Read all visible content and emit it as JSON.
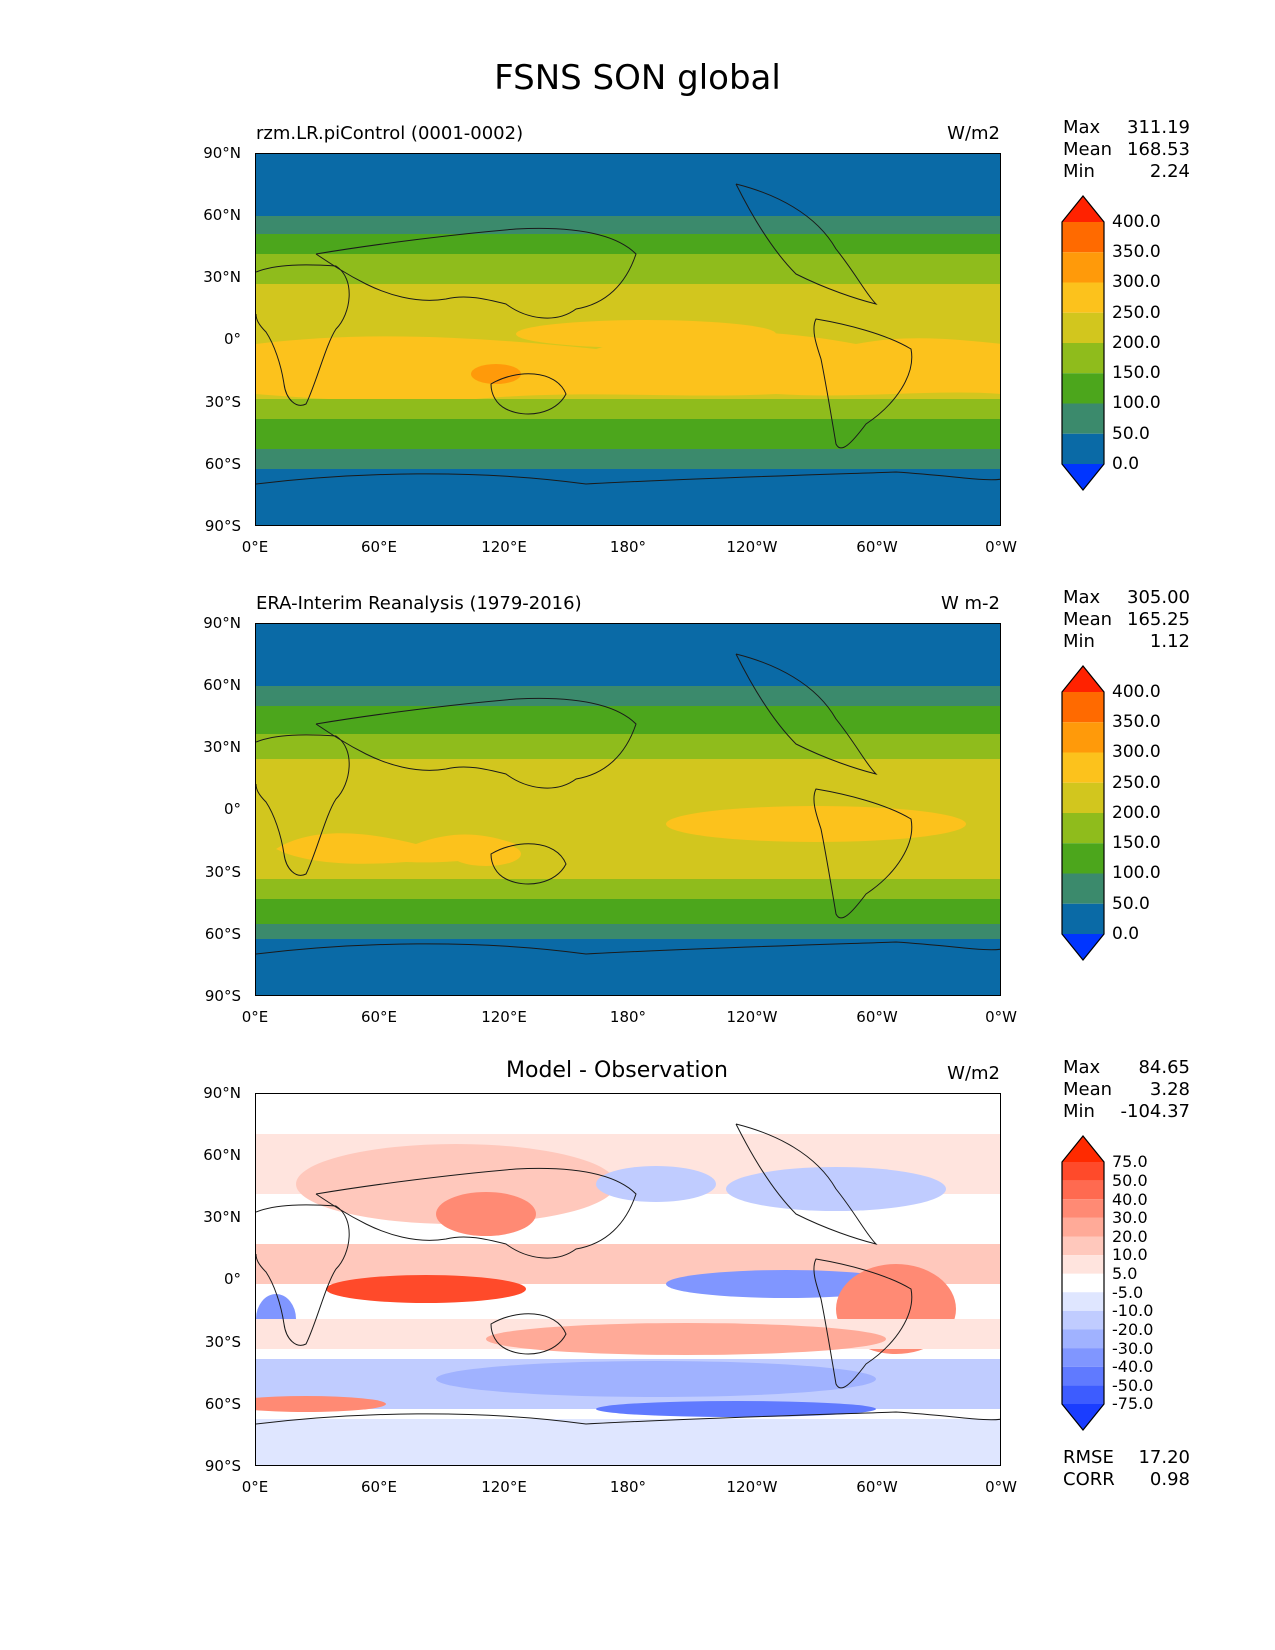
{
  "figure_title": "FSNS SON global",
  "panels": [
    {
      "label": "rzm.LR.piControl (0001-0002)",
      "units": "W/m2",
      "stats": {
        "max_key": "Max",
        "max": "311.19",
        "mean_key": "Mean",
        "mean": "168.53",
        "min_key": "Min",
        "min": "2.24"
      },
      "colorbar": {
        "levels": [
          "400.0",
          "350.0",
          "300.0",
          "250.0",
          "200.0",
          "150.0",
          "100.0",
          "50.0",
          "0.0"
        ],
        "colors": [
          "#ff2200",
          "#ff6a00",
          "#ff9a0a",
          "#fcc21c",
          "#d2c61e",
          "#8fbc1c",
          "#4ca61c",
          "#3b8a6c",
          "#0a6aa6",
          "#0035ff"
        ]
      }
    },
    {
      "label": "ERA-Interim Reanalysis (1979-2016)",
      "units": "W m-2",
      "stats": {
        "max_key": "Max",
        "max": "305.00",
        "mean_key": "Mean",
        "mean": "165.25",
        "min_key": "Min",
        "min": "1.12"
      },
      "colorbar": {
        "levels": [
          "400.0",
          "350.0",
          "300.0",
          "250.0",
          "200.0",
          "150.0",
          "100.0",
          "50.0",
          "0.0"
        ],
        "colors": [
          "#ff2200",
          "#ff6a00",
          "#ff9a0a",
          "#fcc21c",
          "#d2c61e",
          "#8fbc1c",
          "#4ca61c",
          "#3b8a6c",
          "#0a6aa6",
          "#0035ff"
        ]
      }
    },
    {
      "label": "Model - Observation",
      "units": "W/m2",
      "stats": {
        "max_key": "Max",
        "max": "84.65",
        "mean_key": "Mean",
        "mean": "3.28",
        "min_key": "Min",
        "min": "-104.37"
      },
      "extra_stats": {
        "rmse_key": "RMSE",
        "rmse": "17.20",
        "corr_key": "CORR",
        "corr": "0.98"
      },
      "colorbar": {
        "levels": [
          "75.0",
          "50.0",
          "40.0",
          "30.0",
          "20.0",
          "10.0",
          "5.0",
          "-5.0",
          "-10.0",
          "-20.0",
          "-30.0",
          "-40.0",
          "-50.0",
          "-75.0"
        ],
        "colors": [
          "#ff2a00",
          "#ff4a2a",
          "#ff6a50",
          "#ff8a74",
          "#ffaa98",
          "#ffc8bc",
          "#ffe4de",
          "#ffffff",
          "#dfe6ff",
          "#c0ccff",
          "#a0b2ff",
          "#8096ff",
          "#607aff",
          "#3d5cff",
          "#1a3dff"
        ]
      }
    }
  ],
  "lat_ticks": [
    "90°N",
    "60°N",
    "30°N",
    "0°",
    "30°S",
    "60°S",
    "90°S"
  ],
  "lon_ticks": [
    "0°E",
    "60°E",
    "120°E",
    "180°",
    "120°W",
    "60°W",
    "0°W"
  ]
}
